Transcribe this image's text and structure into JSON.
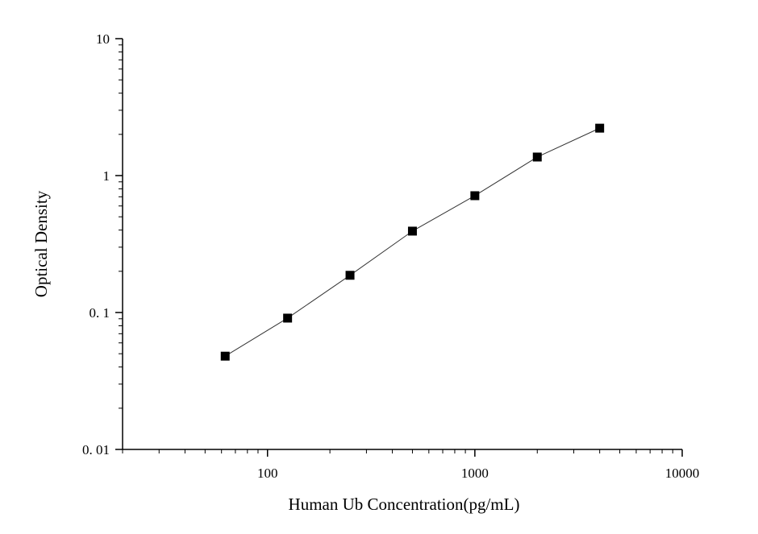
{
  "chart_data": {
    "type": "scatter",
    "xlabel": "Human Ub Concentration(pg/mL)",
    "ylabel": "Optical Density",
    "x": [
      62.5,
      125,
      250,
      500,
      1000,
      2000,
      4000
    ],
    "series": [
      {
        "color": "#000000",
        "values": [
          0.048,
          0.091,
          0.187,
          0.393,
          0.713,
          1.366,
          2.22
        ]
      }
    ],
    "xscale": "log",
    "yscale": "log",
    "xlim": [
      20,
      10000
    ],
    "ylim": [
      0.01,
      10
    ],
    "xticks": [
      100,
      1000,
      10000
    ],
    "yticks": [
      {
        "value": 0.01,
        "label": "0. 01"
      },
      {
        "value": 0.1,
        "label": "0. 1"
      },
      1,
      10
    ],
    "xminorticks": [
      20,
      30,
      40,
      50,
      60,
      70,
      80,
      90,
      200,
      300,
      400,
      500,
      600,
      700,
      800,
      900,
      2000,
      3000,
      4000,
      5000,
      6000,
      7000,
      8000,
      9000
    ],
    "yminorticks": [
      0.02,
      0.03,
      0.04,
      0.05,
      0.06,
      0.07,
      0.08,
      0.09,
      0.2,
      0.3,
      0.4,
      0.5,
      0.6,
      0.7,
      0.8,
      0.9,
      2,
      3,
      4,
      5,
      6,
      7,
      8,
      9
    ],
    "grid": false
  }
}
